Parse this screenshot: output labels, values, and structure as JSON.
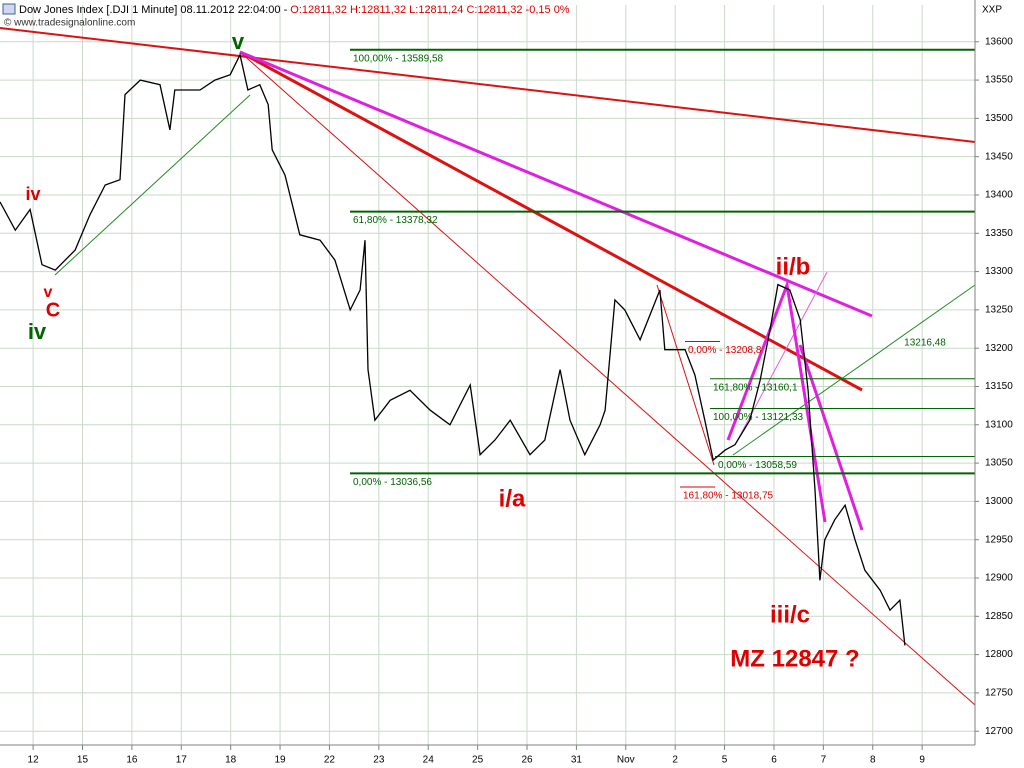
{
  "chart_data": {
    "type": "line",
    "title": "Dow Jones Index [.DJI  1 Minute] 08.11.2012 22:04:00 - ",
    "quote": "O:12811,32 H:12811,32 L:12811,24 C:12811,32 -0,15 0%",
    "watermark": "© www.tradesignalonline.com",
    "axis_label": "XXP",
    "color": "#000000",
    "grid": true,
    "xlim": [
      -0.67,
      19.07
    ],
    "ylim": [
      12682,
      13648
    ],
    "xticks": [
      {
        "value": 0,
        "label": "12"
      },
      {
        "value": 1,
        "label": "15"
      },
      {
        "value": 2,
        "label": "16"
      },
      {
        "value": 3,
        "label": "17"
      },
      {
        "value": 4,
        "label": "18"
      },
      {
        "value": 5,
        "label": "19"
      },
      {
        "value": 6,
        "label": "22"
      },
      {
        "value": 7,
        "label": "23"
      },
      {
        "value": 8,
        "label": "24"
      },
      {
        "value": 9,
        "label": "25"
      },
      {
        "value": 10,
        "label": "26"
      },
      {
        "value": 11,
        "label": "31"
      },
      {
        "value": 12,
        "label": "Nov"
      },
      {
        "value": 13,
        "label": "2"
      },
      {
        "value": 14,
        "label": "5"
      },
      {
        "value": 15,
        "label": "6"
      },
      {
        "value": 16,
        "label": "7"
      },
      {
        "value": 17,
        "label": "8"
      },
      {
        "value": 18,
        "label": "9"
      }
    ],
    "yticks": [
      12700,
      12750,
      12800,
      12850,
      12900,
      12950,
      13000,
      13050,
      13100,
      13150,
      13200,
      13250,
      13300,
      13350,
      13400,
      13450,
      13500,
      13550,
      13600
    ],
    "x": [
      -0.67,
      -0.36,
      -0.06,
      0.18,
      0.45,
      0.85,
      1.15,
      1.46,
      1.76,
      1.86,
      2.17,
      2.57,
      2.77,
      2.87,
      3.38,
      3.68,
      3.99,
      4.19,
      4.35,
      4.59,
      4.76,
      4.84,
      5.1,
      5.4,
      5.81,
      6.11,
      6.42,
      6.62,
      6.72,
      6.78,
      6.92,
      7.23,
      7.63,
      8.04,
      8.44,
      8.85,
      9.05,
      9.35,
      9.66,
      10.06,
      10.36,
      10.67,
      10.87,
      11.17,
      11.48,
      11.58,
      11.78,
      11.98,
      12.29,
      12.69,
      12.79,
      13.2,
      13.4,
      13.6,
      13.77,
      14.01,
      14.21,
      14.51,
      14.72,
      14.92,
      15.08,
      15.32,
      15.53,
      15.69,
      15.83,
      15.93,
      16.03,
      16.23,
      16.44,
      16.64,
      16.84,
      17.15,
      17.35,
      17.55,
      17.65
    ],
    "values": [
      13391,
      13354,
      13381,
      13309,
      13302,
      13328,
      13374,
      13413,
      13420,
      13531,
      13550,
      13544,
      13485,
      13537,
      13537,
      13550,
      13557,
      13583,
      13537,
      13544,
      13518,
      13459,
      13426,
      13348,
      13341,
      13315,
      13250,
      13276,
      13341,
      13172,
      13106,
      13132,
      13145,
      13119,
      13100,
      13152,
      13061,
      13080,
      13106,
      13061,
      13080,
      13172,
      13106,
      13061,
      13100,
      13119,
      13263,
      13250,
      13211,
      13276,
      13198,
      13198,
      13165,
      13106,
      13054,
      13067,
      13074,
      13106,
      13158,
      13224,
      13283,
      13276,
      13237,
      13145,
      13015,
      12897,
      12950,
      12976,
      12995,
      12950,
      12910,
      12884,
      12858,
      12871,
      12812
    ],
    "levels": [
      {
        "label": "100,00% - 13589,58",
        "value": 13589.58,
        "color": "#006400"
      },
      {
        "label": "61,80% - 13378,32",
        "value": 13378.32,
        "color": "#006400"
      },
      {
        "label": "0,00% - 13036,56",
        "value": 13036.56,
        "color": "#006400"
      },
      {
        "label": "161,80% - 13160,1",
        "value": 13160.1,
        "color": "#006400"
      },
      {
        "label": "100,00% - 13121,33",
        "value": 13121.33,
        "color": "#006400"
      },
      {
        "label": "0,00% - 13058,59",
        "value": 13058.59,
        "color": "#006400"
      },
      {
        "label": "0,00% - 13208,8",
        "value": 13208.8,
        "color": "#dd0000"
      },
      {
        "label": "161,80% - 13018,75",
        "value": 13018.75,
        "color": "#dd0000"
      }
    ],
    "annotations": [
      {
        "text": "iv",
        "color": "#dd0000"
      },
      {
        "text": "v",
        "color": "#dd0000"
      },
      {
        "text": "C",
        "color": "#dd0000"
      },
      {
        "text": "iv",
        "color": "#006400"
      },
      {
        "text": "v",
        "color": "#006400"
      },
      {
        "text": "i/a",
        "color": "#dd0000"
      },
      {
        "text": "ii/b",
        "color": "#dd0000"
      },
      {
        "text": "iii/c",
        "color": "#dd0000"
      },
      {
        "text": "MZ 12847  ?",
        "color": "#dd0000"
      },
      {
        "text": "13216,48",
        "color": "#006400"
      }
    ]
  }
}
